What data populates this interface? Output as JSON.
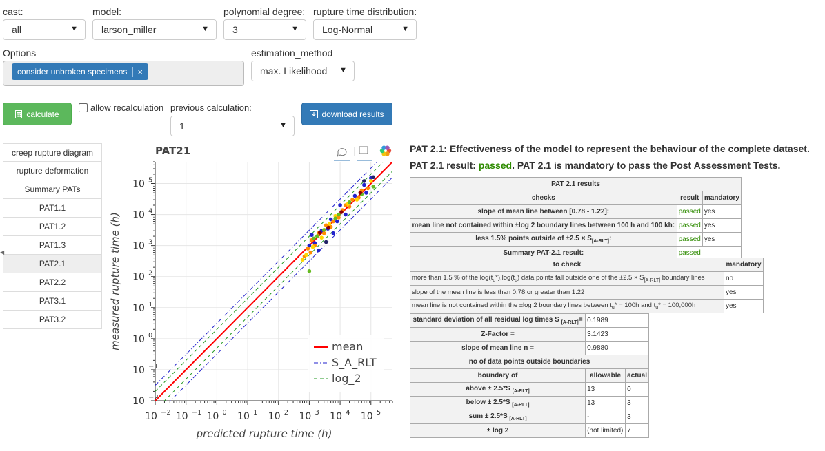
{
  "filters": {
    "cast": {
      "label": "cast:",
      "value": "all"
    },
    "model": {
      "label": "model:",
      "value": "larson_miller"
    },
    "degree": {
      "label": "polynomial degree:",
      "value": "3"
    },
    "distribution": {
      "label": "rupture time distribution:",
      "value": "Log-Normal"
    },
    "options": {
      "label": "Options",
      "chip": "consider unbroken specimens",
      "chip_close": "×"
    },
    "estimation": {
      "label": "estimation_method",
      "value": "max. Likelihood"
    }
  },
  "actions": {
    "calculate": "calculate",
    "allow_recalc": "allow recalculation",
    "prev_label": "previous calculation:",
    "prev_value": "1",
    "download": "download results"
  },
  "nav": [
    "creep rupture diagram",
    "rupture deformation",
    "Summary PATs",
    "PAT1.1",
    "PAT1.2",
    "PAT1.3",
    "PAT2.1",
    "PAT2.2",
    "PAT3.1",
    "PAT3.2"
  ],
  "nav_active": "PAT2.1",
  "colors": {
    "mean": "#ff0000",
    "s_a_rlt": "#2222cc",
    "log_2": "#229922",
    "passed": "#2e8b00",
    "button_blue": "#337ab7",
    "button_green": "#5cb85c"
  },
  "chart_data": {
    "type": "scatter",
    "title": "PAT21",
    "xlabel": "predicted rupture time (h)",
    "ylabel": "measured rupture time (h)",
    "log_scale": true,
    "xlim": [
      0.01,
      500000
    ],
    "ylim": [
      0.01,
      500000
    ],
    "xticks": [
      "10",
      "10",
      "10",
      "10",
      "10",
      "10",
      "10",
      "10"
    ],
    "xtick_exp": [
      "−2",
      "−1",
      "0",
      "1",
      "2",
      "3",
      "4",
      "5"
    ],
    "yticks": [
      "10",
      "10",
      "10",
      "10",
      "10",
      "10",
      "10",
      "10"
    ],
    "ytick_exp": [
      "−2",
      "−1",
      "0",
      "1",
      "2",
      "3",
      "4",
      "5"
    ],
    "grid": true,
    "legend_position": "bottom-right",
    "series": [
      {
        "name": "mean",
        "style": "solid",
        "color": "#ff0000",
        "points": [
          [
            0.01,
            0.01
          ],
          [
            500000,
            500000
          ]
        ]
      },
      {
        "name": "S_A_RLT",
        "style": "dash-dot",
        "color": "#2222cc",
        "factor_log": 0.497
      },
      {
        "name": "log_2",
        "style": "dashed",
        "color": "#229922",
        "factor_log": 0.301
      }
    ],
    "scatter": [
      {
        "color": "#2222cc",
        "points": [
          [
            1000,
            1000
          ],
          [
            1500,
            1200
          ],
          [
            2500,
            3000
          ],
          [
            4000,
            3500
          ],
          [
            5000,
            7000
          ],
          [
            8000,
            6000
          ],
          [
            10000,
            20000
          ],
          [
            15000,
            10000
          ],
          [
            30000,
            40000
          ],
          [
            60000,
            90000
          ],
          [
            100000,
            150000
          ],
          [
            2000,
            700
          ],
          [
            6000,
            2500
          ],
          [
            1200,
            2200
          ],
          [
            70000,
            50000
          ]
        ]
      },
      {
        "color": "#ff8c00",
        "points": [
          [
            900,
            800
          ],
          [
            1200,
            1500
          ],
          [
            1500,
            1000
          ],
          [
            2000,
            2500
          ],
          [
            3000,
            2500
          ],
          [
            3500,
            4500
          ],
          [
            6000,
            6000
          ],
          [
            9000,
            8000
          ],
          [
            12000,
            14000
          ],
          [
            20000,
            18000
          ],
          [
            25000,
            30000
          ],
          [
            40000,
            35000
          ],
          [
            50000,
            60000
          ],
          [
            80000,
            70000
          ],
          [
            700,
            450
          ],
          [
            1100,
            600
          ],
          [
            5000,
            4000
          ],
          [
            15000,
            20000
          ]
        ]
      },
      {
        "color": "#ffd700",
        "points": [
          [
            800,
            500
          ],
          [
            1300,
            900
          ],
          [
            2500,
            1800
          ],
          [
            4500,
            5000
          ],
          [
            7000,
            9000
          ],
          [
            18000,
            22000
          ],
          [
            35000,
            30000
          ],
          [
            100000,
            120000
          ],
          [
            600,
            350
          ]
        ]
      },
      {
        "color": "#66bb22",
        "points": [
          [
            1000,
            150
          ],
          [
            1800,
            2000
          ],
          [
            3000,
            3200
          ],
          [
            7000,
            7500
          ],
          [
            20000,
            25000
          ],
          [
            50000,
            45000
          ],
          [
            120000,
            80000
          ],
          [
            1400,
            1700
          ],
          [
            9000,
            10000
          ]
        ]
      },
      {
        "color": "#8b0000",
        "points": [
          [
            2200,
            2600
          ],
          [
            4200,
            3800
          ],
          [
            11000,
            12000
          ],
          [
            45000,
            50000
          ]
        ]
      },
      {
        "color": "#222266",
        "points": [
          [
            3500,
            1300
          ],
          [
            120000,
            160000
          ],
          [
            60000,
            120000
          ]
        ]
      }
    ]
  },
  "pat": {
    "heading": "PAT 2.1: Effectiveness of the model to represent the behaviour of the complete dataset.",
    "result_prefix": "PAT 2.1 result: ",
    "result_value": "passed",
    "result_suffix": ". PAT 2.1 is mandatory to pass the Post Assessment Tests.",
    "table1": {
      "title": "PAT 2.1 results",
      "headers": [
        "checks",
        "result",
        "mandatory"
      ],
      "rows": [
        [
          "slope of mean line between [0.78 - 1.22]:",
          "passed",
          "yes"
        ],
        [
          "mean line not contained within ±log 2 boundary lines between 100 h and 100 kh:",
          "passed",
          "yes"
        ],
        [
          "less 1.5% points outside of ±2.5 × S",
          "passed",
          "yes"
        ]
      ],
      "row3_sub": "[A-RLT]",
      "row3_tail": ":",
      "summary_label": "Summary PAT-2.1 result:",
      "summary_value": "passed"
    },
    "table2": {
      "headers": [
        "to check",
        "mandatory"
      ],
      "rows": [
        [
          "more than 1.5 % of the log(t",
          "yes"
        ],
        [
          "slope of the mean line is less than 0.78 or greater than 1.22",
          "yes"
        ],
        [
          "mean line is not contained within the ±log 2 boundary lines between t",
          "yes"
        ]
      ],
      "row1_full": "more than 1.5 % of the log(t",
      "row1_a": "u",
      "row1_b": "*),log(t",
      "row1_c": "u",
      "row1_d": ") data points fall outside one of the ±2.5 × S",
      "row1_e": "[A-RLT]",
      "row1_f": " boundary lines",
      "row1_val": "no",
      "row3_a": "u",
      "row3_b": "* = 100h and t",
      "row3_c": "u",
      "row3_d": "* = 100,000h"
    },
    "table3": {
      "std_label": "standard deviation of all residual log times S",
      "std_sub": "[A-RLT]",
      "std_tail": "=",
      "std_value": "0.1989",
      "z_label": "Z-Factor =",
      "z_value": "3.1423",
      "slope_label": "slope of mean line n =",
      "slope_value": "0.9880",
      "nodp_label": "no of data points outside boundaries",
      "headers": [
        "boundary of",
        "allowable",
        "actual"
      ],
      "rows": [
        {
          "label": "above ± 2.5*S",
          "sub": "[A-RLT]",
          "allow": "13",
          "actual": "0"
        },
        {
          "label": "below ± 2.5*S",
          "sub": "[A-RLT]",
          "allow": "13",
          "actual": "3"
        },
        {
          "label": "sum ± 2.5*S",
          "sub": "[A-RLT]",
          "allow": "-",
          "actual": "3"
        },
        {
          "label": "± log 2",
          "sub": "",
          "allow": "(not limited)",
          "actual": "7"
        }
      ]
    }
  }
}
